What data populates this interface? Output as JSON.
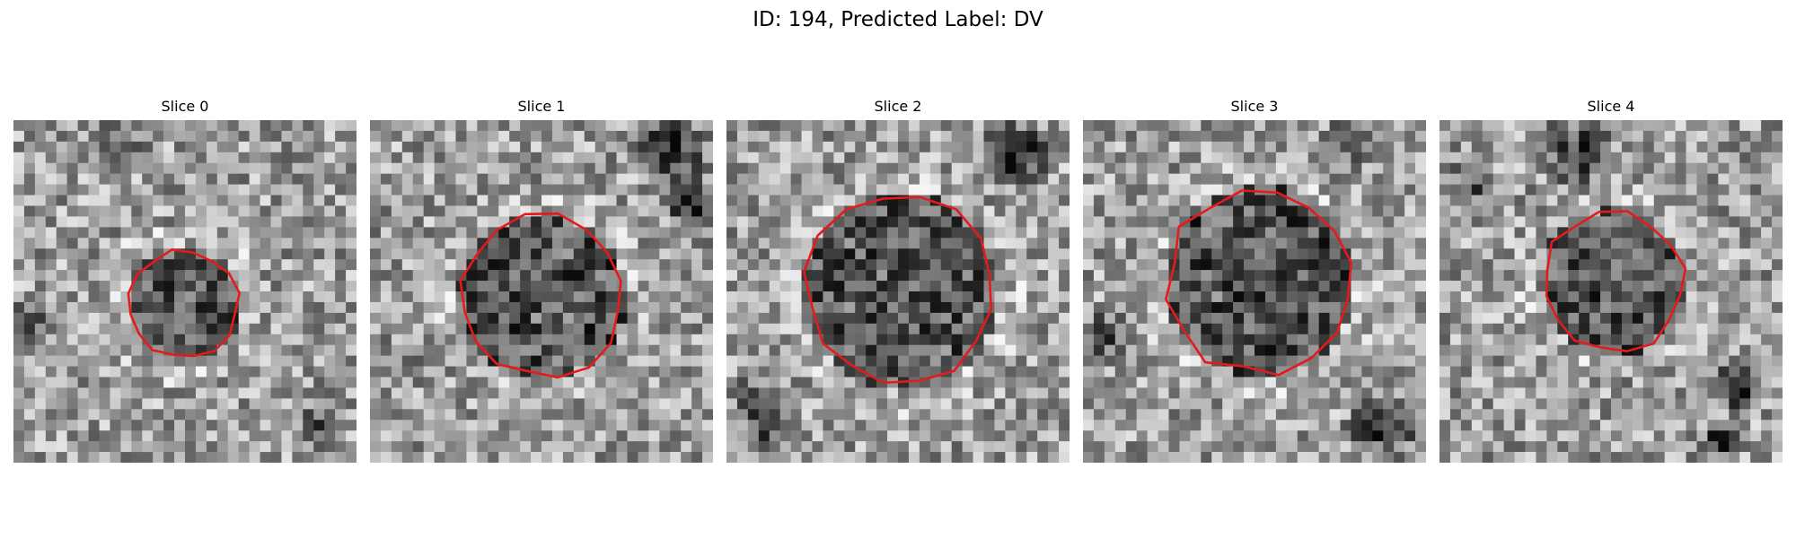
{
  "figure": {
    "title": "ID: 194, Predicted Label: DV"
  },
  "panels": [
    {
      "title": "Slice 0",
      "seed": 11,
      "contour_color": "#e41a1c"
    },
    {
      "title": "Slice 1",
      "seed": 23,
      "contour_color": "#e41a1c"
    },
    {
      "title": "Slice 2",
      "seed": 37,
      "contour_color": "#e41a1c"
    },
    {
      "title": "Slice 3",
      "seed": 53,
      "contour_color": "#e41a1c"
    },
    {
      "title": "Slice 4",
      "seed": 71,
      "contour_color": "#e41a1c"
    }
  ]
}
